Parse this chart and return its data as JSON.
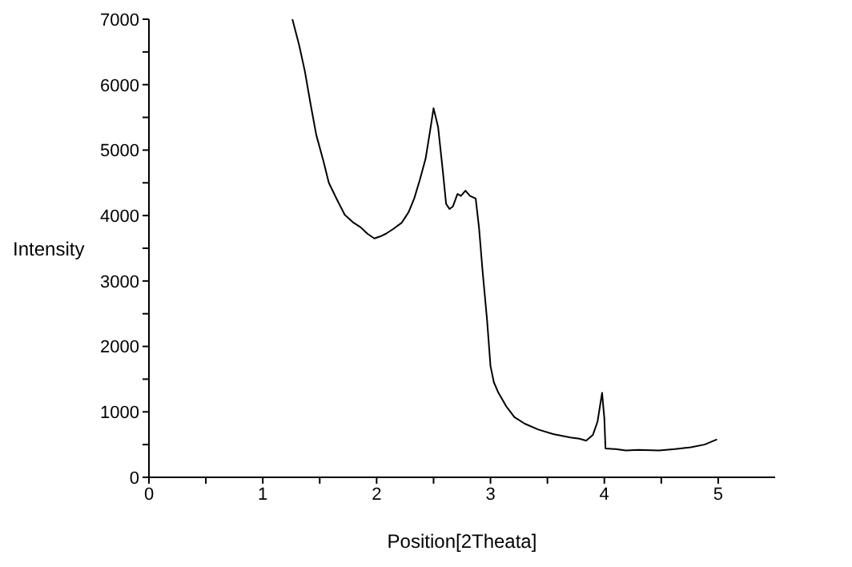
{
  "chart_data": {
    "type": "line",
    "xlabel": "Position[2Theata]",
    "ylabel": "Intensity",
    "xlim": [
      0,
      5.5
    ],
    "xticks": [
      0,
      {
        "value": 0.5,
        "label": null
      },
      1,
      {
        "value": 1.5,
        "label": null
      },
      2,
      {
        "value": 2.5,
        "label": null
      },
      3,
      {
        "value": 3.5,
        "label": null
      },
      4,
      {
        "value": 4.5,
        "label": null
      },
      5
    ],
    "ylim": [
      0,
      7000
    ],
    "yticks": [
      0,
      {
        "value": 500,
        "label": null
      },
      1000,
      {
        "value": 1500,
        "label": null
      },
      2000,
      {
        "value": 2500,
        "label": null
      },
      3000,
      {
        "value": 3500,
        "label": null
      },
      4000,
      {
        "value": 4500,
        "label": null
      },
      5000,
      {
        "value": 5500,
        "label": null
      },
      6000,
      {
        "value": 6500,
        "label": null
      },
      7000
    ],
    "marker": "none",
    "series": [
      {
        "color": "#000000",
        "x": [
          1.26,
          1.32,
          1.37,
          1.42,
          1.47,
          1.53,
          1.58,
          1.65,
          1.72,
          1.79,
          1.86,
          1.92,
          1.98,
          2.03,
          2.08,
          2.15,
          2.22,
          2.28,
          2.33,
          2.38,
          2.43,
          2.47,
          2.5,
          2.54,
          2.58,
          2.61,
          2.64,
          2.67,
          2.71,
          2.74,
          2.78,
          2.82,
          2.87,
          2.9,
          2.93,
          2.97,
          3.0,
          3.03,
          3.07,
          3.14,
          3.21,
          3.3,
          3.42,
          3.55,
          3.7,
          3.78,
          3.84,
          3.9,
          3.94,
          3.98,
          4.0,
          4.01,
          4.1,
          4.19,
          4.3,
          4.48,
          4.62,
          4.76,
          4.88,
          4.99
        ],
        "values": [
          7000,
          6600,
          6200,
          5700,
          5230,
          4850,
          4500,
          4250,
          4010,
          3900,
          3820,
          3720,
          3650,
          3680,
          3720,
          3800,
          3890,
          4050,
          4260,
          4550,
          4870,
          5300,
          5640,
          5350,
          4700,
          4180,
          4100,
          4140,
          4330,
          4300,
          4380,
          4300,
          4260,
          3800,
          3160,
          2400,
          1700,
          1450,
          1290,
          1080,
          920,
          820,
          730,
          660,
          610,
          590,
          560,
          650,
          850,
          1290,
          900,
          440,
          430,
          410,
          420,
          410,
          430,
          460,
          500,
          580
        ]
      }
    ]
  }
}
